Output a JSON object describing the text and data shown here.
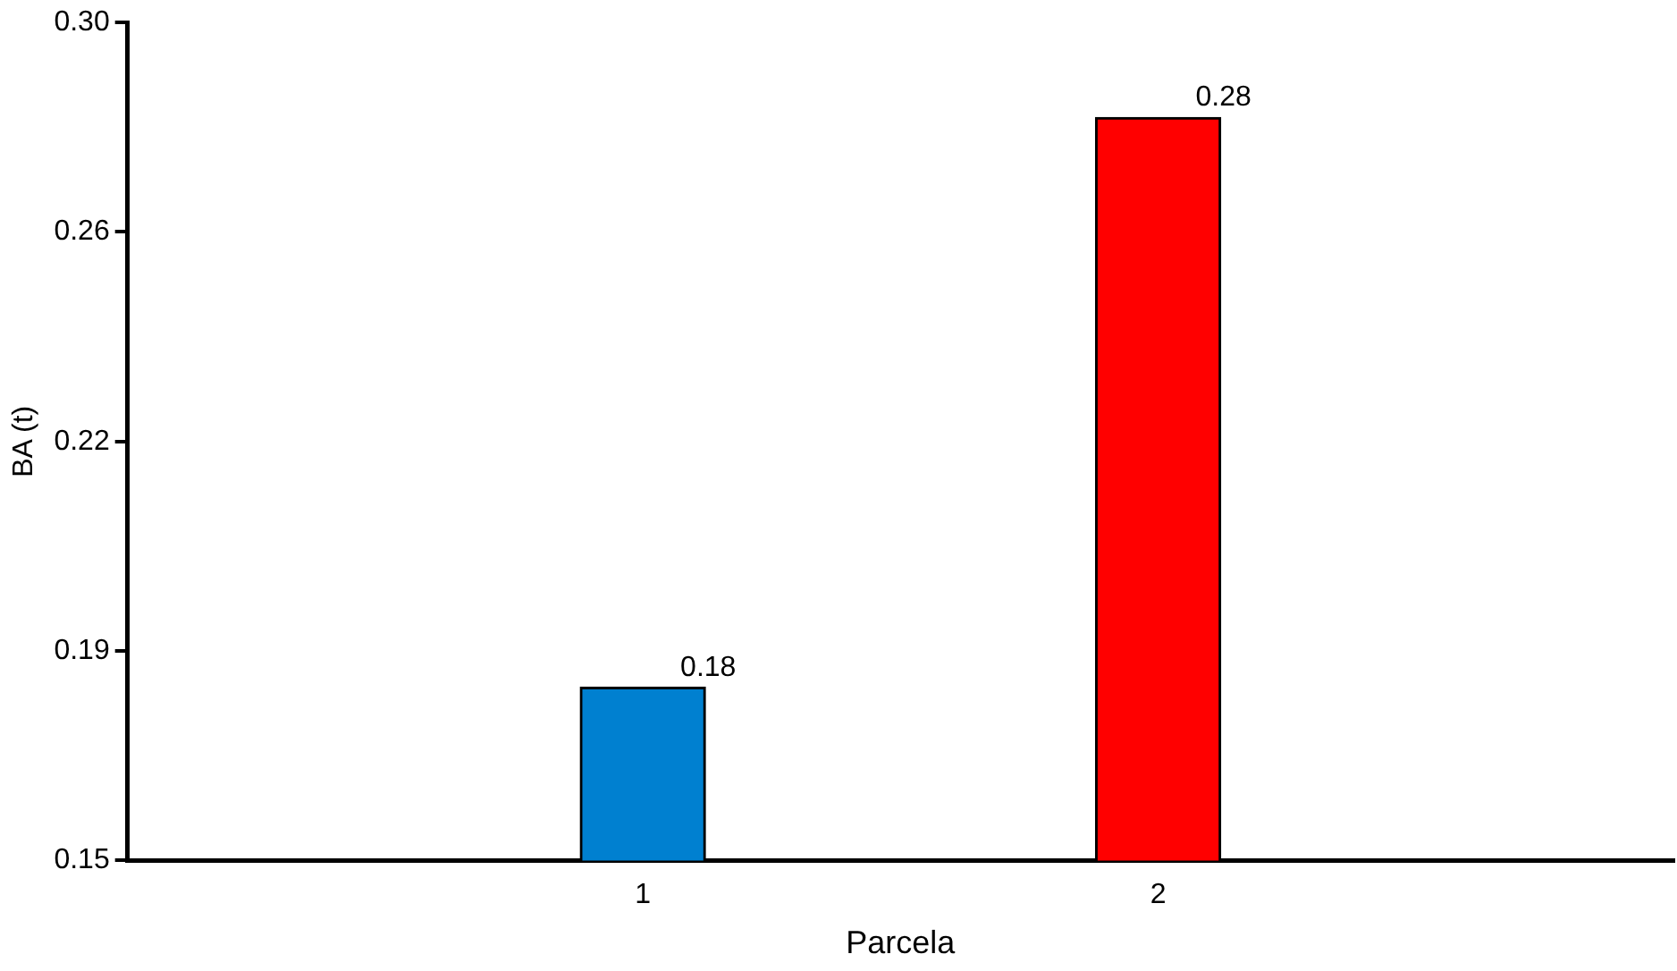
{
  "chart_data": {
    "type": "bar",
    "xlabel": "Parcela",
    "ylabel": "BA (t)",
    "categories": [
      "1",
      "2"
    ],
    "values": [
      0.181,
      0.283
    ],
    "colors": [
      "#0080d0",
      "#ff0000"
    ],
    "value_labels": [
      "0.18",
      "0.28"
    ],
    "ylim": [
      0.15,
      0.3
    ],
    "yticks": [
      {
        "value": 0.15,
        "label": "0.15"
      },
      {
        "value": 0.1875,
        "label": "0.19"
      },
      {
        "value": 0.225,
        "label": "0.22"
      },
      {
        "value": 0.2625,
        "label": "0.26"
      },
      {
        "value": 0.3,
        "label": "0.30"
      }
    ],
    "grid": false,
    "legend": false
  }
}
